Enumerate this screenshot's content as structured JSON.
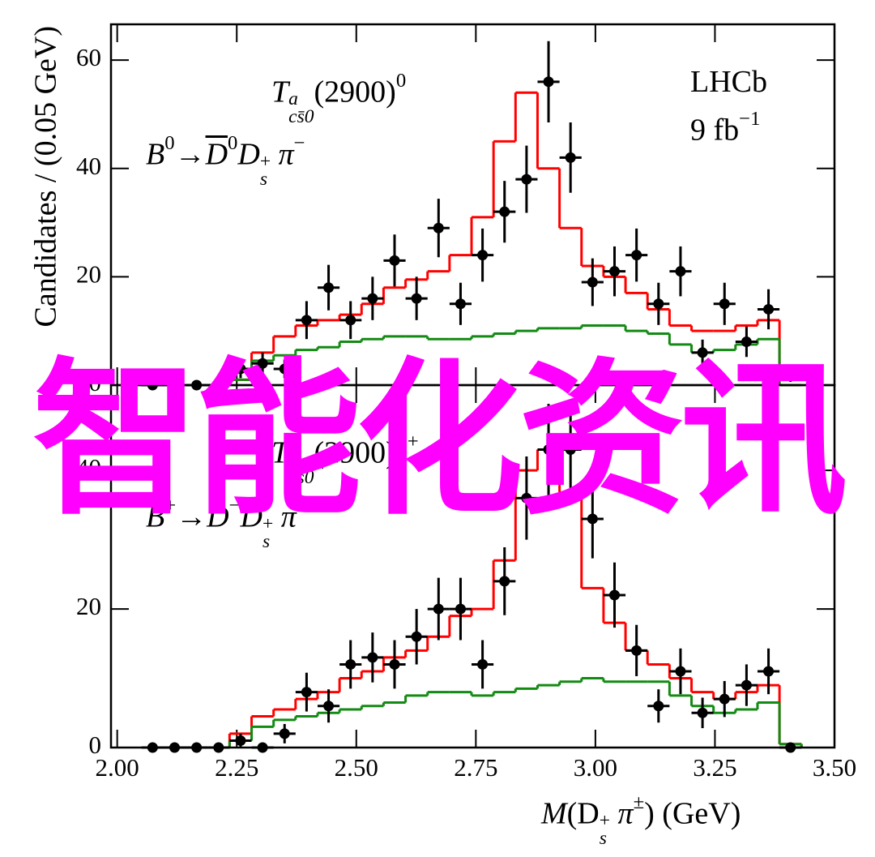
{
  "chart_data": [
    {
      "type": "errorbar",
      "state": [
        "T",
        "a",
        "cs̄0",
        "(2900)",
        "0"
      ],
      "decay": [
        "B",
        "0",
        "→",
        "D",
        "0",
        "D",
        "+",
        "s",
        " π",
        "−"
      ],
      "experiment": "LHCb",
      "luminosity": [
        "9 fb",
        "−1"
      ],
      "ylabel": "Candidates / (0.05 GeV)",
      "xlim": [
        1.987,
        3.5
      ],
      "ylim": [
        0,
        66.6
      ],
      "yticks": [
        0,
        20,
        40,
        60
      ],
      "points": {
        "color": "#000000",
        "x": [
          2.074,
          2.12,
          2.166,
          2.212,
          2.258,
          2.304,
          2.35,
          2.396,
          2.442,
          2.488,
          2.534,
          2.58,
          2.626,
          2.672,
          2.718,
          2.764,
          2.81,
          2.856,
          2.902,
          2.948,
          2.994,
          3.04,
          3.086,
          3.132,
          3.178,
          3.224,
          3.27,
          3.316,
          3.362,
          3.408
        ],
        "values": [
          0,
          0,
          0,
          0,
          3,
          4,
          3,
          12,
          18,
          12,
          16,
          23,
          16,
          29,
          15,
          24,
          32,
          38,
          56,
          42,
          19,
          21,
          24,
          15,
          21,
          6,
          15,
          8,
          14,
          2
        ],
        "errors": [
          0,
          0,
          0,
          0,
          1.7,
          2,
          1.7,
          3.5,
          4.2,
          3.5,
          4,
          4.8,
          4,
          5.4,
          3.9,
          4.9,
          5.7,
          6.2,
          7.5,
          6.5,
          4.4,
          4.6,
          4.9,
          3.9,
          4.6,
          2.4,
          3.9,
          2.8,
          3.7,
          1.4
        ]
      },
      "bins": [
        2.235,
        2.281,
        2.327,
        2.373,
        2.419,
        2.465,
        2.511,
        2.557,
        2.603,
        2.649,
        2.695,
        2.741,
        2.787,
        2.833,
        2.879,
        2.925,
        2.971,
        3.017,
        3.063,
        3.109,
        3.155,
        3.201,
        3.247,
        3.293,
        3.339,
        3.385,
        3.431
      ],
      "histograms": [
        {
          "color": "#ff0000",
          "values": [
            1,
            6,
            9,
            11,
            12,
            13,
            15,
            18,
            19.5,
            21,
            24,
            31,
            45,
            54,
            40,
            29,
            22,
            20,
            17,
            14,
            11,
            10,
            10,
            11,
            12,
            0
          ]
        },
        {
          "color": "#138a13",
          "values": [
            1,
            4.5,
            5.5,
            6.5,
            7,
            8,
            8.5,
            9,
            9,
            8.5,
            8.5,
            9,
            9.5,
            10,
            10.5,
            10.5,
            11,
            11,
            10,
            9.5,
            7.5,
            6,
            6.5,
            7.5,
            8.5,
            0
          ]
        }
      ]
    },
    {
      "type": "errorbar",
      "state": [
        "T",
        "a",
        "cs̄0",
        "(2900)",
        "++"
      ],
      "decay": [
        "B",
        "+",
        "→",
        "D",
        "−",
        "D",
        "+",
        "s",
        " π",
        "+"
      ],
      "xlabel": [
        "M",
        "(D",
        "+",
        "s",
        " π",
        "±",
        ") (GeV)"
      ],
      "xlim": [
        1.987,
        3.5
      ],
      "ylim": [
        0,
        52.3
      ],
      "yticks": [
        0,
        20,
        40
      ],
      "xticks": [
        {
          "value": 2,
          "label": "2.00"
        },
        2.25,
        {
          "value": 2.5,
          "label": "2.50"
        },
        2.75,
        {
          "value": 3,
          "label": "3.00"
        },
        3.25,
        {
          "value": 3.5,
          "label": "3.50"
        }
      ],
      "points": {
        "color": "#000000",
        "x": [
          2.074,
          2.12,
          2.166,
          2.212,
          2.258,
          2.304,
          2.35,
          2.396,
          2.442,
          2.488,
          2.534,
          2.58,
          2.626,
          2.672,
          2.718,
          2.764,
          2.81,
          2.856,
          2.902,
          2.948,
          2.994,
          3.04,
          3.086,
          3.132,
          3.178,
          3.224,
          3.27,
          3.316,
          3.362,
          3.408
        ],
        "values": [
          0,
          0,
          0,
          0,
          1,
          0,
          2,
          8,
          6,
          12,
          13,
          12,
          16,
          20,
          20,
          12,
          24,
          36,
          43,
          43,
          33,
          22,
          14,
          6,
          11,
          5,
          7,
          9,
          11,
          0
        ],
        "errors": [
          0,
          0,
          0,
          0,
          1,
          0,
          1.4,
          2.8,
          2.4,
          3.5,
          3.6,
          3.5,
          4,
          4.5,
          4.5,
          3.5,
          4.9,
          6,
          6.6,
          6.6,
          5.7,
          4.7,
          3.7,
          2.4,
          3.3,
          2.2,
          2.6,
          3,
          3.3,
          0
        ]
      },
      "bins": [
        2.235,
        2.281,
        2.327,
        2.373,
        2.419,
        2.465,
        2.511,
        2.557,
        2.603,
        2.649,
        2.695,
        2.741,
        2.787,
        2.833,
        2.879,
        2.925,
        2.971,
        3.017,
        3.063,
        3.109,
        3.155,
        3.201,
        3.247,
        3.293,
        3.339,
        3.385,
        3.431
      ],
      "histograms": [
        {
          "color": "#ff0000",
          "values": [
            2,
            4.5,
            5.5,
            7,
            8,
            10,
            11,
            13,
            14,
            16,
            19,
            20,
            27,
            40,
            43,
            36,
            23,
            18,
            14,
            12,
            10,
            8,
            7,
            8,
            9,
            0.5
          ]
        },
        {
          "color": "#138a13",
          "values": [
            1,
            3,
            4,
            4.5,
            5,
            5.5,
            6,
            6.5,
            7.5,
            8,
            8,
            7.5,
            8,
            8.5,
            9,
            9.5,
            10,
            9.5,
            9.5,
            9.5,
            7.5,
            6,
            5,
            5.5,
            6.5,
            0.5
          ]
        }
      ]
    }
  ],
  "watermark": "智能化资讯"
}
